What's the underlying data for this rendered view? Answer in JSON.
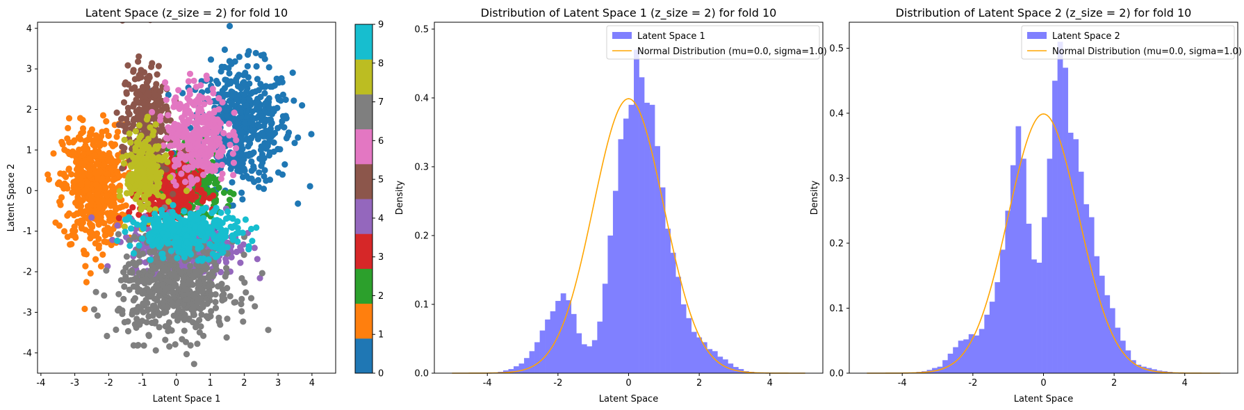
{
  "chart_data": [
    {
      "type": "scatter",
      "title": "Latent Space (z_size = 2) for fold 10",
      "xlabel": "Latent Space 1",
      "ylabel": "Latent Space 2",
      "xlim": [
        -4.1,
        4.7
      ],
      "ylim": [
        -4.5,
        4.15
      ],
      "xticks": [
        "-4",
        "-3",
        "-2",
        "-1",
        "0",
        "1",
        "2",
        "3",
        "4"
      ],
      "yticks": [
        "-4",
        "-3",
        "-2",
        "-1",
        "0",
        "1",
        "2",
        "3",
        "4"
      ],
      "colorbar": {
        "ticks": [
          "0",
          "1",
          "2",
          "3",
          "4",
          "5",
          "6",
          "7",
          "8",
          "9"
        ],
        "range": [
          0,
          9
        ],
        "colors": [
          "#1f77b4",
          "#ff7f0e",
          "#2ca02c",
          "#d62728",
          "#9467bd",
          "#8c564b",
          "#e377c2",
          "#7f7f7f",
          "#bcbd22",
          "#17becf"
        ]
      },
      "clusters": [
        {
          "label": 0,
          "color": "#1f77b4",
          "center": [
            1.9,
            1.6
          ],
          "spread": [
            0.75,
            0.75
          ],
          "points": 520
        },
        {
          "label": 1,
          "color": "#ff7f0e",
          "center": [
            -2.45,
            0.1
          ],
          "spread": [
            0.45,
            0.75
          ],
          "points": 520
        },
        {
          "label": 2,
          "color": "#2ca02c",
          "center": [
            0.35,
            0.1
          ],
          "spread": [
            0.45,
            0.45
          ],
          "points": 300
        },
        {
          "label": 3,
          "color": "#d62728",
          "center": [
            -0.2,
            0.0
          ],
          "spread": [
            0.45,
            0.45
          ],
          "points": 300
        },
        {
          "label": 4,
          "color": "#9467bd",
          "center": [
            0.2,
            -1.4
          ],
          "spread": [
            0.8,
            0.35
          ],
          "points": 380
        },
        {
          "label": 5,
          "color": "#8c564b",
          "center": [
            -0.9,
            1.7
          ],
          "spread": [
            0.35,
            0.7
          ],
          "points": 300
        },
        {
          "label": 6,
          "color": "#e377c2",
          "center": [
            0.6,
            1.4
          ],
          "spread": [
            0.45,
            0.6
          ],
          "points": 320
        },
        {
          "label": 7,
          "color": "#7f7f7f",
          "center": [
            0.0,
            -2.4
          ],
          "spread": [
            0.85,
            0.6
          ],
          "points": 560
        },
        {
          "label": 8,
          "color": "#bcbd22",
          "center": [
            -0.9,
            0.45
          ],
          "spread": [
            0.28,
            0.5
          ],
          "points": 220
        },
        {
          "label": 9,
          "color": "#17becf",
          "center": [
            0.3,
            -1.05
          ],
          "spread": [
            0.8,
            0.28
          ],
          "points": 320
        }
      ]
    },
    {
      "type": "bar",
      "title": "Distribution of Latent Space 1 (z_size = 2) for fold 10",
      "xlabel": "Latent Space",
      "ylabel": "Density",
      "xlim": [
        -5.5,
        5.5
      ],
      "ylim": [
        0,
        0.51
      ],
      "xticks": [
        "-4",
        "-2",
        "0",
        "2",
        "4"
      ],
      "yticks": [
        "0.0",
        "0.1",
        "0.2",
        "0.3",
        "0.4",
        "0.5"
      ],
      "legend_position": "top-right",
      "series": [
        {
          "name": "Latent Space 1",
          "color": "#8080ff",
          "bin_start": -3.7,
          "bin_width": 0.148,
          "values": [
            0.002,
            0.004,
            0.006,
            0.01,
            0.014,
            0.022,
            0.032,
            0.045,
            0.062,
            0.078,
            0.09,
            0.105,
            0.116,
            0.106,
            0.086,
            0.058,
            0.042,
            0.039,
            0.048,
            0.075,
            0.13,
            0.2,
            0.265,
            0.34,
            0.37,
            0.39,
            0.47,
            0.43,
            0.393,
            0.39,
            0.33,
            0.27,
            0.21,
            0.175,
            0.14,
            0.1,
            0.08,
            0.06,
            0.052,
            0.045,
            0.035,
            0.032,
            0.024,
            0.02,
            0.014,
            0.009,
            0.006,
            0.003,
            0.002,
            0.001
          ]
        },
        {
          "name": "Normal Distribution (mu=0.0, sigma=1.0)",
          "color": "#ffa500",
          "mu": 0.0,
          "sigma": 1.0,
          "x_range": [
            -5,
            5
          ]
        }
      ]
    },
    {
      "type": "bar",
      "title": "Distribution of Latent Space 2 (z_size = 2) for fold 10",
      "xlabel": "Latent Space",
      "ylabel": "Density",
      "xlim": [
        -5.5,
        5.5
      ],
      "ylim": [
        0,
        0.54
      ],
      "xticks": [
        "-4",
        "-2",
        "0",
        "2",
        "4"
      ],
      "yticks": [
        "0.0",
        "0.1",
        "0.2",
        "0.3",
        "0.4",
        "0.5"
      ],
      "legend_position": "top-right",
      "series": [
        {
          "name": "Latent Space 2",
          "color": "#8080ff",
          "bin_start": -3.6,
          "bin_width": 0.148,
          "values": [
            0.002,
            0.003,
            0.005,
            0.008,
            0.01,
            0.02,
            0.03,
            0.04,
            0.05,
            0.052,
            0.06,
            0.058,
            0.068,
            0.09,
            0.11,
            0.14,
            0.19,
            0.25,
            0.32,
            0.38,
            0.33,
            0.23,
            0.175,
            0.17,
            0.24,
            0.33,
            0.45,
            0.51,
            0.47,
            0.37,
            0.36,
            0.31,
            0.26,
            0.24,
            0.18,
            0.15,
            0.12,
            0.1,
            0.07,
            0.05,
            0.035,
            0.02,
            0.013,
            0.01,
            0.008,
            0.006,
            0.004,
            0.003,
            0.002,
            0.001
          ]
        },
        {
          "name": "Normal Distribution (mu=0.0, sigma=1.0)",
          "color": "#ffa500",
          "mu": 0.0,
          "sigma": 1.0,
          "x_range": [
            -5,
            5
          ]
        }
      ]
    }
  ]
}
